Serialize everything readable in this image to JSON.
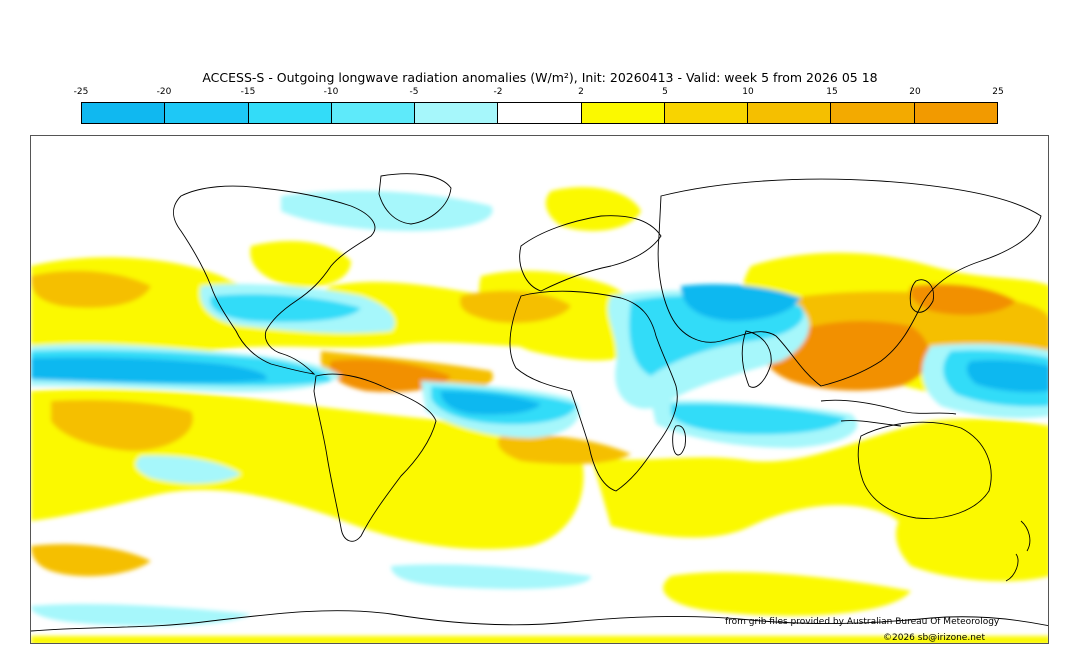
{
  "title": "ACCESS-S - Outgoing longwave radiation anomalies (W/m²), Init: 20260413 - Valid: week 5 from 2026 05 18",
  "colorbar": {
    "tick_labels": [
      "-25",
      "-20",
      "-15",
      "-10",
      "-5",
      "-2",
      "2",
      "5",
      "10",
      "15",
      "20",
      "25"
    ],
    "colors": [
      "#10b8f0",
      "#1ec8f6",
      "#33dcf8",
      "#5eeafa",
      "#a6f7fb",
      "#ffffff",
      "#fbf900",
      "#f8d400",
      "#f5bf00",
      "#f3aa00",
      "#f29a00"
    ]
  },
  "palette": {
    "neg_strong": "#10b8f0",
    "neg_mid": "#33dcf8",
    "neg_light": "#a6f7fb",
    "pos_light": "#fbf900",
    "pos_mid": "#f5bf00",
    "pos_strong": "#f29000"
  },
  "credits": {
    "source": "from grib files provided by Australian Bureau Of Meteorology",
    "copyright": "©2026 sb@irizone.net"
  }
}
